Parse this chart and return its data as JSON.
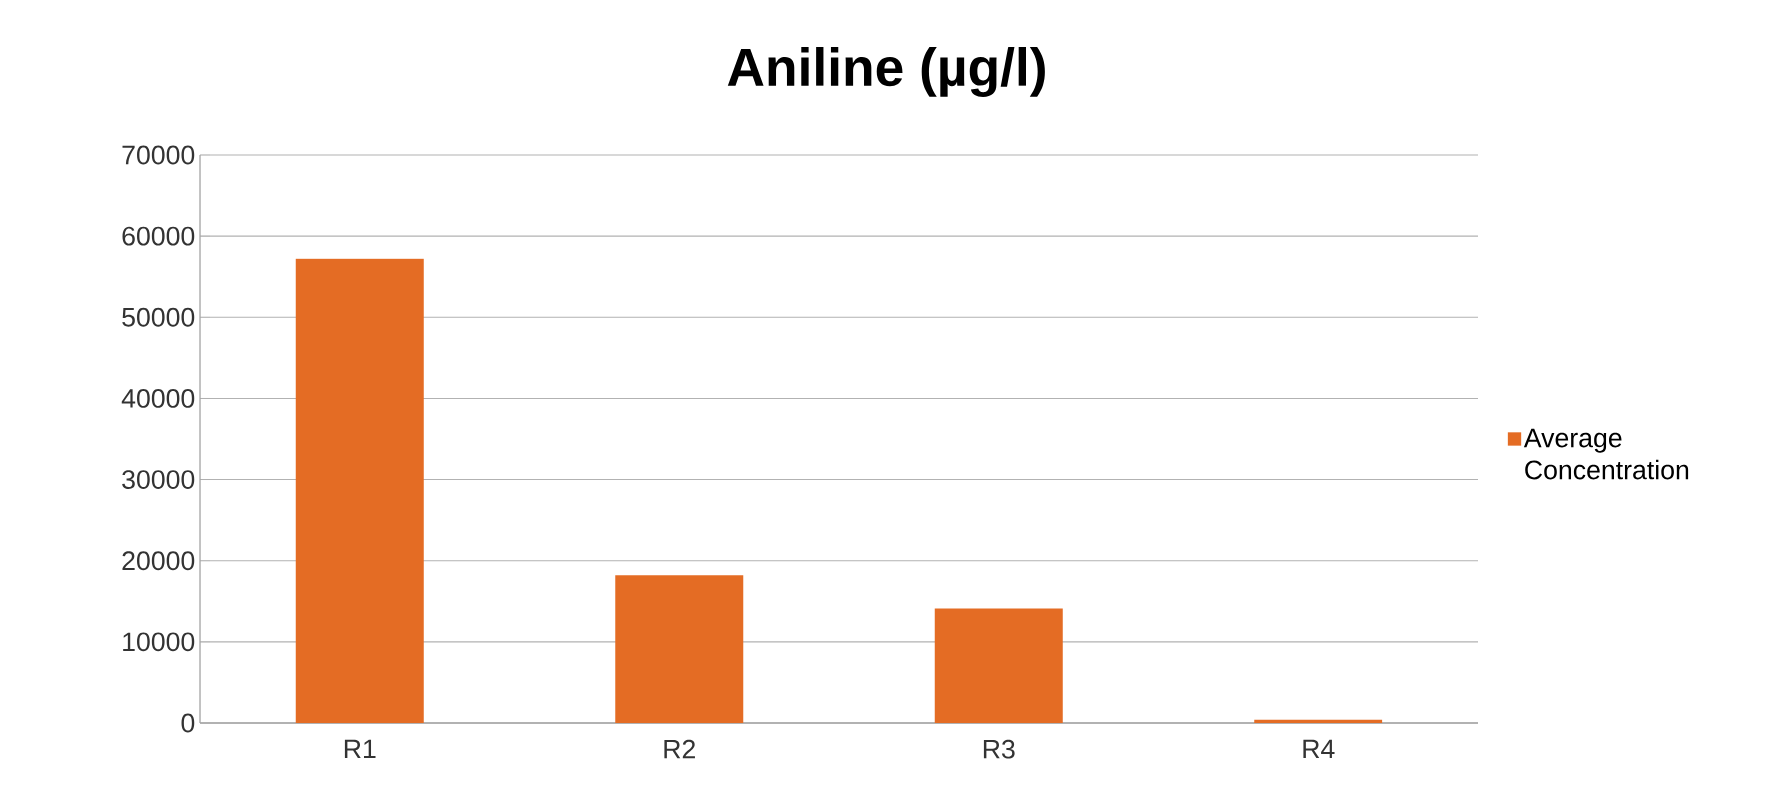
{
  "chart_data": {
    "type": "bar",
    "title": "Aniline (µg/l)",
    "categories": [
      "R1",
      "R2",
      "R3",
      "R4"
    ],
    "series": [
      {
        "name": "Average Concentration",
        "color": "#e46c24",
        "values": [
          57200,
          18200,
          14100,
          400
        ]
      }
    ],
    "ylim": [
      0,
      70000
    ],
    "yticks": [
      0,
      10000,
      20000,
      30000,
      40000,
      50000,
      60000,
      70000
    ],
    "grid": "y",
    "legend": "right"
  }
}
